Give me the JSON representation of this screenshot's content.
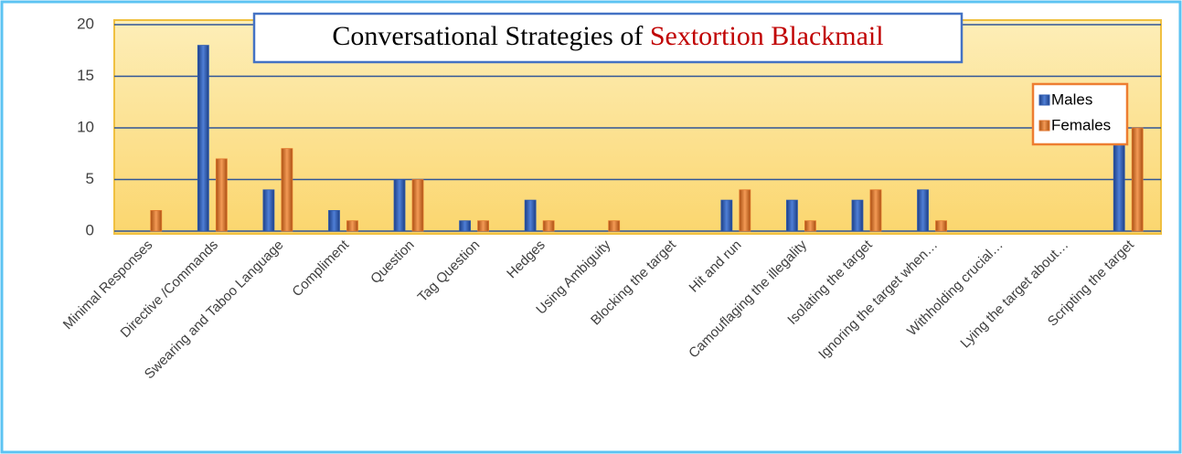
{
  "chart_data": {
    "type": "bar",
    "title_parts": [
      "Conversational Strategies of",
      "Sextortion Blackmail"
    ],
    "categories": [
      "Minimal Responses",
      "Directive /Commands",
      "Swearing and Taboo Language",
      "Compliment",
      "Question",
      "Tag Question",
      "Hedges",
      "Using Ambiguity",
      "Blocking the target",
      "Hit and run",
      "Camouflaging the illegality",
      "Isolating the target",
      "Ignoring the target when…",
      "Withholding crucial…",
      "Lying the target about…",
      "Scripting the target"
    ],
    "series": [
      {
        "name": "Males",
        "color": "#2e5bb0",
        "values": [
          0,
          18,
          4,
          2,
          5,
          1,
          3,
          0,
          0,
          3,
          3,
          3,
          4,
          0,
          0,
          10
        ]
      },
      {
        "name": "Females",
        "color": "#e0762d",
        "values": [
          2,
          7,
          8,
          1,
          5,
          1,
          1,
          1,
          0,
          4,
          1,
          4,
          1,
          0,
          0,
          10
        ]
      }
    ],
    "ylim": [
      0,
      20
    ],
    "yticks": [
      0,
      5,
      10,
      15,
      20
    ],
    "grid": true,
    "legend": "upper right"
  }
}
